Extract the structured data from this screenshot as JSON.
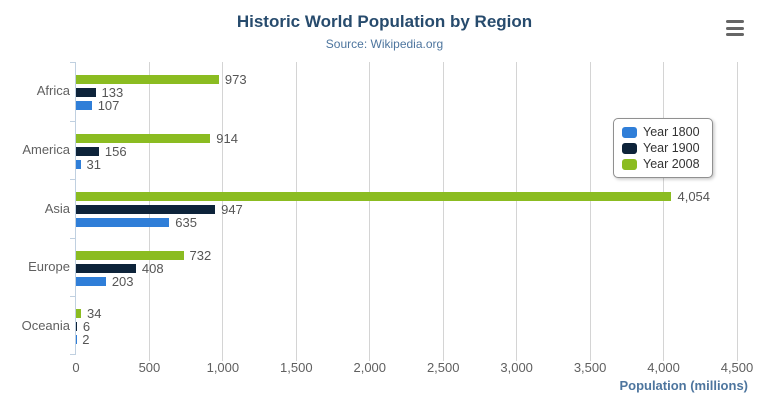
{
  "colors": {
    "title_color": "#274b6d",
    "subtitle_color": "#4d759e",
    "axis_title_color": "#4d759e",
    "axis_label_color": "#606060",
    "data_label_color": "#555555",
    "legend_text_color": "#333333",
    "legend_border_color": "#909090",
    "grid_color": "#d4d4d4",
    "category_axis_color": "#c0d0e0",
    "export_icon": "#666666"
  },
  "chart_data": {
    "type": "bar",
    "title": "Historic World Population by Region",
    "subtitle": "Source: Wikipedia.org",
    "xlabel": "Population (millions)",
    "categories": [
      "Africa",
      "America",
      "Asia",
      "Europe",
      "Oceania"
    ],
    "series": [
      {
        "name": "Year 1800",
        "color": "#2f7ed8",
        "values": [
          107,
          31,
          635,
          203,
          2
        ],
        "labels": [
          "107",
          "31",
          "635",
          "203",
          "2"
        ]
      },
      {
        "name": "Year 1900",
        "color": "#0d233a",
        "values": [
          133,
          156,
          947,
          408,
          6
        ],
        "labels": [
          "133",
          "156",
          "947",
          "408",
          "6"
        ]
      },
      {
        "name": "Year 2008",
        "color": "#8bbc21",
        "values": [
          973,
          914,
          4054,
          732,
          34
        ],
        "labels": [
          "973",
          "914",
          "4,054",
          "732",
          "34"
        ]
      }
    ],
    "bar_display_order_top_to_bottom": [
      "Year 2008",
      "Year 1900",
      "Year 1800"
    ],
    "axis": {
      "min": 0,
      "max": 4500,
      "tick_interval": 500,
      "tick_values": [
        0,
        500,
        1000,
        1500,
        2000,
        2500,
        3000,
        3500,
        4000,
        4500
      ],
      "tick_labels": [
        "0",
        "500",
        "1,000",
        "1,500",
        "2,000",
        "2,500",
        "3,000",
        "3,500",
        "4,000",
        "4,500"
      ]
    },
    "grid": true,
    "legend": {
      "position": "right",
      "entries": [
        "Year 1800",
        "Year 1900",
        "Year 2008"
      ]
    }
  }
}
